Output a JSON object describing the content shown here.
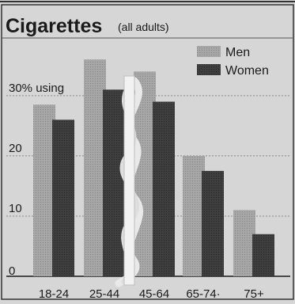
{
  "chart_data": {
    "type": "bar",
    "title": "Cigarettes",
    "subtitle": "(all adults)",
    "categories": [
      "18-24",
      "25-44",
      "45-64",
      "65-74",
      "75+"
    ],
    "tick_labels": [
      "18-24",
      "25-44",
      "45-64",
      "65-74·",
      "75+"
    ],
    "series": [
      {
        "name": "Men",
        "values": [
          28.5,
          36,
          34,
          20,
          11
        ]
      },
      {
        "name": "Women",
        "values": [
          26,
          31,
          29,
          17.5,
          7
        ]
      }
    ],
    "y_ticks": [
      0,
      10,
      20,
      30
    ],
    "y_tick_labels": [
      "0",
      "10",
      "20",
      "30% using"
    ],
    "ylim": [
      0,
      38
    ],
    "grid": true,
    "legend_position": "top-right",
    "colors": {
      "men": "#9c9c9c",
      "women": "#3b3b3b",
      "background": "#d6d6d6",
      "ink": "#1a1a1a"
    },
    "decoration": "cigarette-smoke-icon"
  }
}
